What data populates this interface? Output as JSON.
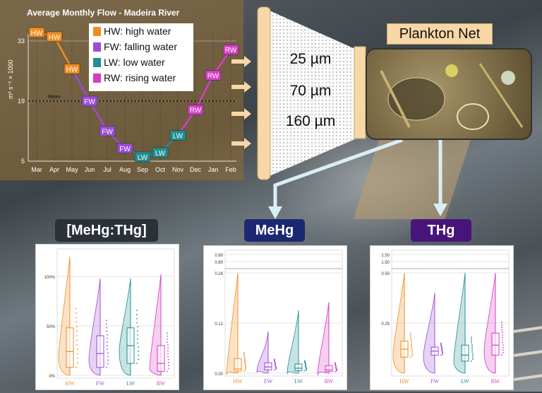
{
  "flow_chart": {
    "title": "Average Monthly Flow - Madeira River",
    "ylabel": "m³ s⁻¹ × 1000",
    "mean_label": "Mean",
    "months": [
      "Mar",
      "Apr",
      "May",
      "Jun",
      "Jul",
      "Aug",
      "Sep",
      "Oct",
      "Nov",
      "Dec",
      "Jan",
      "Feb"
    ],
    "yticks": [
      "33",
      "19",
      "5"
    ],
    "points": [
      {
        "month": "Mar",
        "season": "HW",
        "flow": 35
      },
      {
        "month": "Apr",
        "season": "HW",
        "flow": 34
      },
      {
        "month": "May",
        "season": "HW",
        "flow": 26.5
      },
      {
        "month": "Jun",
        "season": "FW",
        "flow": 19
      },
      {
        "month": "Jul",
        "season": "FW",
        "flow": 12
      },
      {
        "month": "Aug",
        "season": "FW",
        "flow": 8
      },
      {
        "month": "Sep",
        "season": "LW",
        "flow": 6
      },
      {
        "month": "Oct",
        "season": "LW",
        "flow": 7
      },
      {
        "month": "Nov",
        "season": "LW",
        "flow": 11
      },
      {
        "month": "Dec",
        "season": "RW",
        "flow": 17
      },
      {
        "month": "Jan",
        "season": "RW",
        "flow": 25
      },
      {
        "month": "Feb",
        "season": "RW",
        "flow": 31
      }
    ],
    "mean_value": 19,
    "legend": [
      {
        "code": "HW",
        "label": "HW: high water",
        "color": "#f08c1e"
      },
      {
        "code": "FW",
        "label": "FW: falling water",
        "color": "#9a4cd6"
      },
      {
        "code": "LW",
        "label": "LW: low water",
        "color": "#1f8f8f"
      },
      {
        "code": "RW",
        "label": "RW: rising water",
        "color": "#d63cc4"
      }
    ]
  },
  "net": {
    "label": "Plankton Net",
    "mesh_sizes": [
      "25 µm",
      "70 µm",
      "160 µm"
    ]
  },
  "panels": [
    {
      "title": "[MeHg:THg]",
      "title_color": "#2b3138",
      "ticks": [
        "100%",
        "50%",
        "0%"
      ],
      "groups": [
        {
          "code": "HW",
          "median": 0.24,
          "q1": 0.08,
          "q3": 0.48,
          "min": 0.0,
          "max": 1.2
        },
        {
          "code": "FW",
          "median": 0.22,
          "q1": 0.08,
          "q3": 0.4,
          "min": 0.0,
          "max": 0.98
        },
        {
          "code": "LW",
          "median": 0.3,
          "q1": 0.12,
          "q3": 0.48,
          "min": 0.0,
          "max": 0.98
        },
        {
          "code": "RW",
          "median": 0.12,
          "q1": 0.04,
          "q3": 0.3,
          "min": 0.0,
          "max": 1.02
        }
      ]
    },
    {
      "title": "MeHg",
      "title_color": "#1c2870",
      "ticks": [
        "0.80",
        "0.60",
        "0.24",
        "0.12",
        "0.00"
      ],
      "groups": [
        {
          "code": "HW",
          "median": 0.01,
          "q1": 0.005,
          "q3": 0.035,
          "min": 0.0,
          "max": 0.56
        },
        {
          "code": "FW",
          "median": 0.015,
          "q1": 0.008,
          "q3": 0.025,
          "min": 0.0,
          "max": 0.1
        },
        {
          "code": "LW",
          "median": 0.012,
          "q1": 0.006,
          "q3": 0.022,
          "min": 0.0,
          "max": 0.15
        },
        {
          "code": "RW",
          "median": 0.008,
          "q1": 0.004,
          "q3": 0.018,
          "min": 0.0,
          "max": 0.17
        }
      ]
    },
    {
      "title": "THg",
      "title_color": "#47157a",
      "ticks": [
        "2.50",
        "1.50",
        "0.50",
        "0.25"
      ],
      "groups": [
        {
          "code": "HW",
          "median": 0.12,
          "q1": 0.08,
          "q3": 0.16,
          "min": 0.0,
          "max": 0.5
        },
        {
          "code": "FW",
          "median": 0.11,
          "q1": 0.09,
          "q3": 0.13,
          "min": 0.0,
          "max": 0.4
        },
        {
          "code": "LW",
          "median": 0.09,
          "q1": 0.06,
          "q3": 0.14,
          "min": 0.0,
          "max": 1.6
        },
        {
          "code": "RW",
          "median": 0.14,
          "q1": 0.09,
          "q3": 0.2,
          "min": 0.0,
          "max": 0.5
        }
      ]
    }
  ]
}
